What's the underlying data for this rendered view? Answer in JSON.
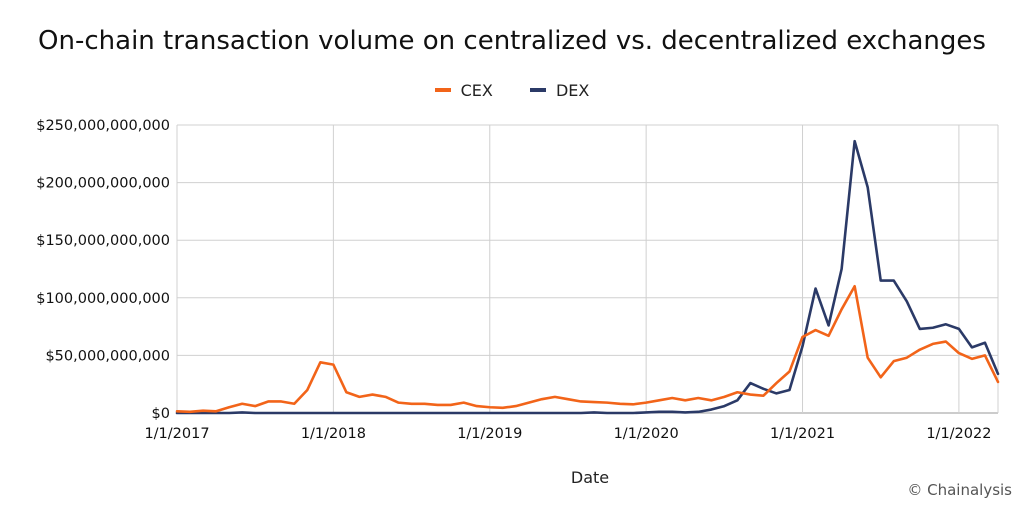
{
  "title": "On-chain transaction volume on centralized vs. decentralized exchanges",
  "xlabel": "Date",
  "credit": "© Chainalysis",
  "chart_data": {
    "type": "line",
    "title": "On-chain transaction volume on centralized vs. decentralized exchanges",
    "xlabel": "Date",
    "ylabel": "",
    "legend_position": "top-center",
    "grid": true,
    "ylim": [
      0,
      250000000000
    ],
    "y_ticks": [
      "$0",
      "$50,000,000,000",
      "$100,000,000,000",
      "$150,000,000,000",
      "$200,000,000,000",
      "$250,000,000,000"
    ],
    "x_ticks": [
      "1/1/2017",
      "1/1/2018",
      "1/1/2019",
      "1/1/2020",
      "1/1/2021",
      "1/1/2022"
    ],
    "x_start": "2017-01",
    "x_interval": "monthly",
    "series": [
      {
        "name": "CEX",
        "color": "#f26419",
        "values": [
          1500000000,
          1000000000,
          2000000000,
          1500000000,
          5000000000,
          8000000000,
          6000000000,
          10000000000,
          10000000000,
          8000000000,
          20000000000,
          44000000000,
          42000000000,
          18000000000,
          14000000000,
          16000000000,
          14000000000,
          9000000000,
          8000000000,
          8000000000,
          7000000000,
          7000000000,
          9000000000,
          6000000000,
          5000000000,
          4500000000,
          6000000000,
          9000000000,
          12000000000,
          14000000000,
          12000000000,
          10000000000,
          9500000000,
          9000000000,
          8000000000,
          7500000000,
          9000000000,
          11000000000,
          13000000000,
          11000000000,
          13000000000,
          11000000000,
          14000000000,
          18000000000,
          16000000000,
          15000000000,
          26000000000,
          36000000000,
          66000000000,
          72000000000,
          67000000000,
          90000000000,
          110000000000,
          48000000000,
          31000000000,
          45000000000,
          48000000000,
          55000000000,
          60000000000,
          62000000000,
          52000000000,
          47000000000,
          50000000000,
          27000000000
        ]
      },
      {
        "name": "DEX",
        "color": "#2b3a67",
        "values": [
          0,
          0,
          0,
          0,
          0,
          500000000,
          0,
          0,
          0,
          0,
          0,
          0,
          0,
          0,
          0,
          0,
          0,
          0,
          0,
          0,
          0,
          0,
          0,
          0,
          0,
          0,
          0,
          0,
          0,
          0,
          0,
          0,
          500000000,
          0,
          0,
          0,
          500000000,
          1000000000,
          1000000000,
          500000000,
          1000000000,
          3000000000,
          6000000000,
          11000000000,
          26000000000,
          21000000000,
          17000000000,
          20000000000,
          58000000000,
          108000000000,
          76000000000,
          125000000000,
          236000000000,
          196000000000,
          115000000000,
          115000000000,
          97000000000,
          73000000000,
          74000000000,
          77000000000,
          73000000000,
          57000000000,
          61000000000,
          34000000000
        ]
      }
    ]
  }
}
